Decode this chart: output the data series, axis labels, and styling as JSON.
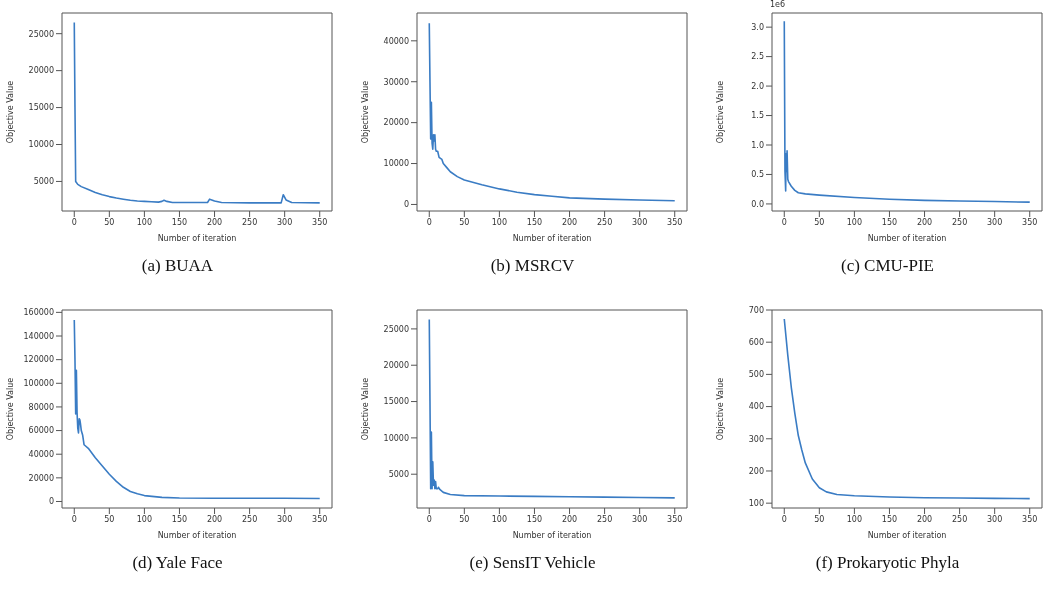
{
  "chart_data": [
    {
      "type": "line",
      "title": "(a) BUAA",
      "xlabel": "Number of iteration",
      "ylabel": "Objective Value",
      "xlim": [
        -17.5,
        367.5
      ],
      "xticks": [
        0,
        50,
        100,
        150,
        200,
        250,
        300,
        350
      ],
      "ylim": [
        1000,
        27800
      ],
      "yticks": [
        5000,
        10000,
        15000,
        20000,
        25000
      ],
      "series": [
        {
          "color": "#3a7cc4",
          "x": [
            0,
            1,
            2,
            5,
            10,
            20,
            30,
            40,
            50,
            60,
            70,
            80,
            90,
            100,
            110,
            120,
            125,
            128,
            132,
            140,
            150,
            190,
            193,
            196,
            200,
            210,
            250,
            295,
            298,
            302,
            310,
            350
          ],
          "values": [
            26500,
            15000,
            5000,
            4600,
            4300,
            3900,
            3500,
            3200,
            2950,
            2750,
            2600,
            2450,
            2350,
            2300,
            2250,
            2200,
            2300,
            2450,
            2300,
            2150,
            2150,
            2150,
            2600,
            2500,
            2350,
            2150,
            2100,
            2100,
            3200,
            2500,
            2150,
            2100
          ]
        }
      ]
    },
    {
      "type": "line",
      "title": "(b) MSRCV",
      "xlabel": "Number of iteration",
      "ylabel": "Objective Value",
      "xlim": [
        -17.5,
        367.5
      ],
      "xticks": [
        0,
        50,
        100,
        150,
        200,
        250,
        300,
        350
      ],
      "ylim": [
        -1600,
        46800
      ],
      "yticks": [
        0,
        10000,
        20000,
        30000,
        40000
      ],
      "series": [
        {
          "color": "#3a7cc4",
          "x": [
            0,
            1,
            2,
            3,
            4,
            5,
            6,
            7,
            8,
            9,
            10,
            12,
            14,
            18,
            20,
            25,
            30,
            40,
            50,
            75,
            100,
            125,
            150,
            175,
            200,
            250,
            300,
            350
          ],
          "values": [
            44300,
            30000,
            16000,
            25000,
            15000,
            13500,
            17000,
            15500,
            17000,
            13500,
            13000,
            13000,
            11500,
            11000,
            10000,
            9000,
            8000,
            6800,
            6000,
            4800,
            3800,
            3000,
            2400,
            2000,
            1600,
            1300,
            1100,
            900
          ]
        }
      ]
    },
    {
      "type": "line",
      "title": "(c) CMU-PIE",
      "xlabel": "Number of iteration",
      "ylabel": "Objective Value",
      "annotations": [
        "1e6"
      ],
      "xlim": [
        -17.5,
        367.5
      ],
      "xticks": [
        0,
        50,
        100,
        150,
        200,
        250,
        300,
        350
      ],
      "ylim": [
        -0.12,
        3.24
      ],
      "yticks": [
        {
          "value": 0,
          "label": "0.0"
        },
        0.5,
        {
          "value": 1,
          "label": "1.0"
        },
        1.5,
        {
          "value": 2,
          "label": "2.0"
        },
        2.5,
        {
          "value": 3,
          "label": "3.0"
        }
      ],
      "series": [
        {
          "color": "#3a7cc4",
          "x": [
            0,
            1,
            2,
            2.5,
            3,
            4,
            5,
            6,
            10,
            15,
            20,
            30,
            50,
            100,
            150,
            200,
            250,
            300,
            350
          ],
          "values": [
            3.1,
            0.55,
            0.22,
            0.85,
            0.55,
            0.9,
            0.42,
            0.38,
            0.3,
            0.23,
            0.19,
            0.17,
            0.15,
            0.11,
            0.08,
            0.06,
            0.05,
            0.04,
            0.03
          ]
        }
      ]
    },
    {
      "type": "line",
      "title": "(d) Yale Face",
      "xlabel": "Number of iteration",
      "ylabel": "Objective Value",
      "xlim": [
        -17.5,
        367.5
      ],
      "xticks": [
        0,
        50,
        100,
        150,
        200,
        250,
        300,
        350
      ],
      "ylim": [
        -5500,
        162000
      ],
      "yticks": [
        0,
        20000,
        40000,
        60000,
        80000,
        100000,
        120000,
        140000,
        160000
      ],
      "series": [
        {
          "color": "#3a7cc4",
          "x": [
            0,
            1,
            2,
            3,
            4,
            5,
            6,
            7,
            8,
            9,
            10,
            12,
            14,
            20,
            30,
            40,
            50,
            60,
            70,
            80,
            90,
            100,
            125,
            150,
            200,
            250,
            300,
            350
          ],
          "values": [
            153500,
            120000,
            74000,
            111000,
            75000,
            62000,
            58000,
            70000,
            69000,
            65000,
            60000,
            56000,
            48000,
            45000,
            37000,
            30000,
            23000,
            17000,
            12000,
            8500,
            6500,
            5000,
            3500,
            3000,
            2800,
            2700,
            2700,
            2600
          ]
        }
      ]
    },
    {
      "type": "line",
      "title": "(e) SensIT Vehicle",
      "xlabel": "Number of iteration",
      "ylabel": "Objective Value",
      "xlim": [
        -17.5,
        367.5
      ],
      "xticks": [
        0,
        50,
        100,
        150,
        200,
        250,
        300,
        350
      ],
      "ylim": [
        350,
        27600
      ],
      "yticks": [
        5000,
        10000,
        15000,
        20000,
        25000
      ],
      "series": [
        {
          "color": "#3a7cc4",
          "x": [
            0,
            1,
            2,
            3,
            4,
            5,
            6,
            7,
            8,
            9,
            10,
            12,
            13,
            15,
            20,
            30,
            50,
            100,
            150,
            200,
            250,
            300,
            350
          ],
          "values": [
            26300,
            15000,
            3000,
            10800,
            3000,
            6700,
            3500,
            4200,
            3000,
            4000,
            3000,
            3000,
            3200,
            2900,
            2500,
            2200,
            2050,
            2000,
            1950,
            1900,
            1850,
            1800,
            1750
          ]
        }
      ]
    },
    {
      "type": "line",
      "title": "(f) Prokaryotic Phyla",
      "xlabel": "Number of iteration",
      "ylabel": "Objective Value",
      "xlim": [
        -17.5,
        367.5
      ],
      "xticks": [
        0,
        50,
        100,
        150,
        200,
        250,
        300,
        350
      ],
      "ylim": [
        85,
        700
      ],
      "yticks": [
        100,
        200,
        300,
        400,
        500,
        600,
        700
      ],
      "series": [
        {
          "color": "#3a7cc4",
          "x": [
            0,
            5,
            10,
            15,
            20,
            25,
            30,
            40,
            50,
            60,
            75,
            100,
            150,
            200,
            250,
            300,
            350
          ],
          "values": [
            672,
            560,
            460,
            380,
            310,
            265,
            225,
            175,
            148,
            135,
            127,
            123,
            119,
            117,
            116,
            115,
            114
          ]
        }
      ]
    }
  ]
}
